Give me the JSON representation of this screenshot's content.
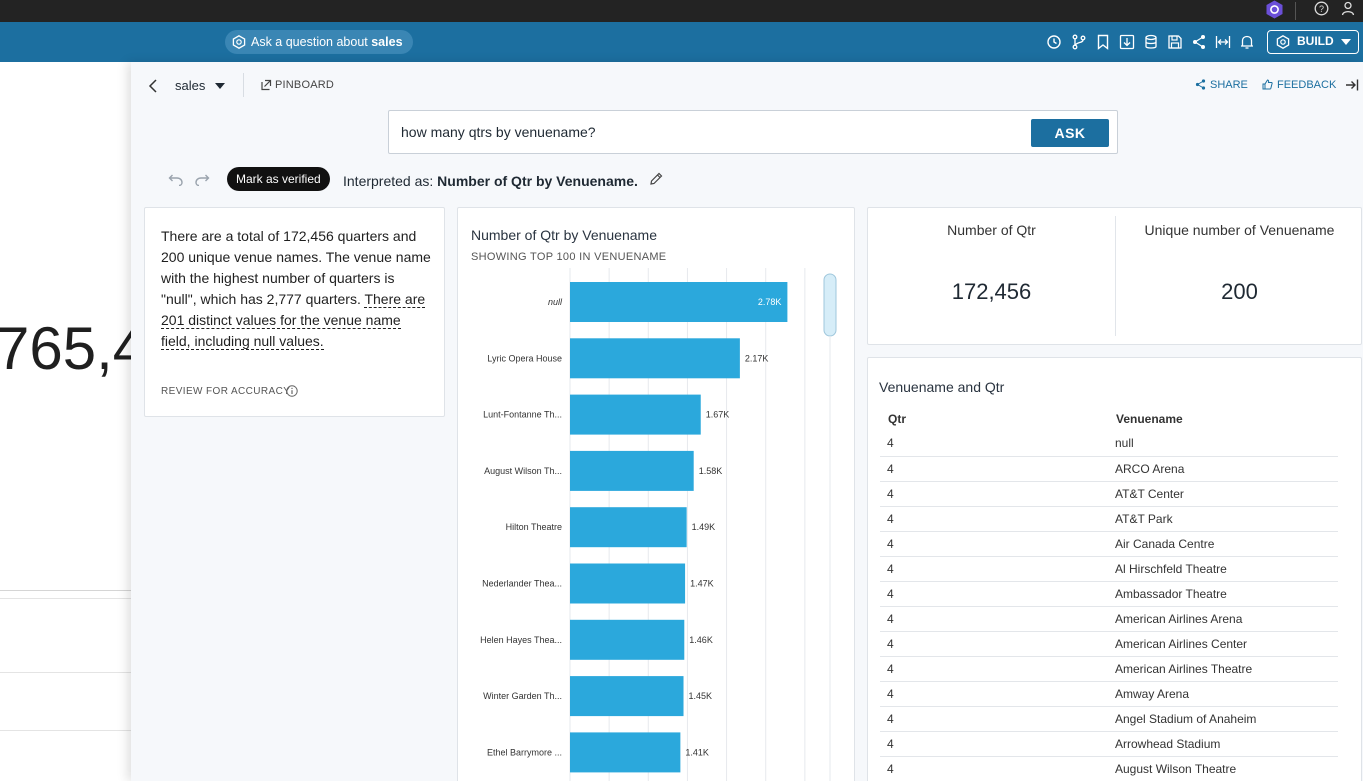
{
  "header": {
    "ask_prefix": "Ask a question about ",
    "ask_source": "sales",
    "build_label": "BUILD",
    "icons": [
      "history-icon",
      "branch-icon",
      "bookmark-icon",
      "download-icon",
      "database-icon",
      "save-icon",
      "share-icon",
      "fit-width-icon",
      "bell-icon"
    ]
  },
  "background_page": {
    "kpi_fragment": "765,4"
  },
  "panel": {
    "source": "sales",
    "pinboard_label": "PINBOARD",
    "share_label": "SHARE",
    "feedback_label": "FEEDBACK",
    "search": {
      "value": "how many qtrs by venuename?",
      "ask_label": "ASK"
    },
    "verify_label": "Mark as verified",
    "interpreted_prefix": "Interpreted as: ",
    "interpreted_value": "Number of Qtr by Venuename.",
    "summary": {
      "text_plain": "There are a total of 172,456 quarters and 200 unique venue names. The venue name with the highest number of quarters is \"null\", which has 2,777 quarters. ",
      "text_dashed": "There are 201 distinct values for the venue name field, including null values.",
      "review_label": "REVIEW FOR ACCURACY"
    },
    "chart": {
      "title": "Number of Qtr by Venuename",
      "subtitle": "SHOWING TOP 100 IN VENUENAME"
    },
    "kpis": [
      {
        "label": "Number of Qtr",
        "value": "172,456"
      },
      {
        "label": "Unique number of Venuename",
        "value": "200"
      }
    ],
    "table": {
      "title": "Venuename and Qtr",
      "columns": [
        "Qtr",
        "Venuename"
      ],
      "rows": [
        [
          "4",
          "null"
        ],
        [
          "4",
          "ARCO Arena"
        ],
        [
          "4",
          "AT&T Center"
        ],
        [
          "4",
          "AT&T Park"
        ],
        [
          "4",
          "Air Canada Centre"
        ],
        [
          "4",
          "Al Hirschfeld Theatre"
        ],
        [
          "4",
          "Ambassador Theatre"
        ],
        [
          "4",
          "American Airlines Arena"
        ],
        [
          "4",
          "American Airlines Center"
        ],
        [
          "4",
          "American Airlines Theatre"
        ],
        [
          "4",
          "Amway Arena"
        ],
        [
          "4",
          "Angel Stadium of Anaheim"
        ],
        [
          "4",
          "Arrowhead Stadium"
        ],
        [
          "4",
          "August Wilson Theatre"
        ]
      ]
    }
  },
  "chart_data": {
    "type": "bar",
    "orientation": "horizontal",
    "title": "Number of Qtr by Venuename",
    "subtitle": "SHOWING TOP 100 IN VENUENAME",
    "categories": [
      "null",
      "Lyric Opera House",
      "Lunt-Fontanne Th...",
      "August Wilson Th...",
      "Hilton Theatre",
      "Nederlander Thea...",
      "Helen Hayes Thea...",
      "Winter Garden Th...",
      "Ethel Barrymore ..."
    ],
    "values": [
      2777,
      2170,
      1670,
      1580,
      1490,
      1470,
      1460,
      1450,
      1410
    ],
    "value_labels": [
      "2.78K",
      "2.17K",
      "1.67K",
      "1.58K",
      "1.49K",
      "1.47K",
      "1.46K",
      "1.45K",
      "1.41K"
    ],
    "xlim": [
      0,
      3500
    ],
    "grid": true,
    "bar_color": "#2ba8dc"
  }
}
